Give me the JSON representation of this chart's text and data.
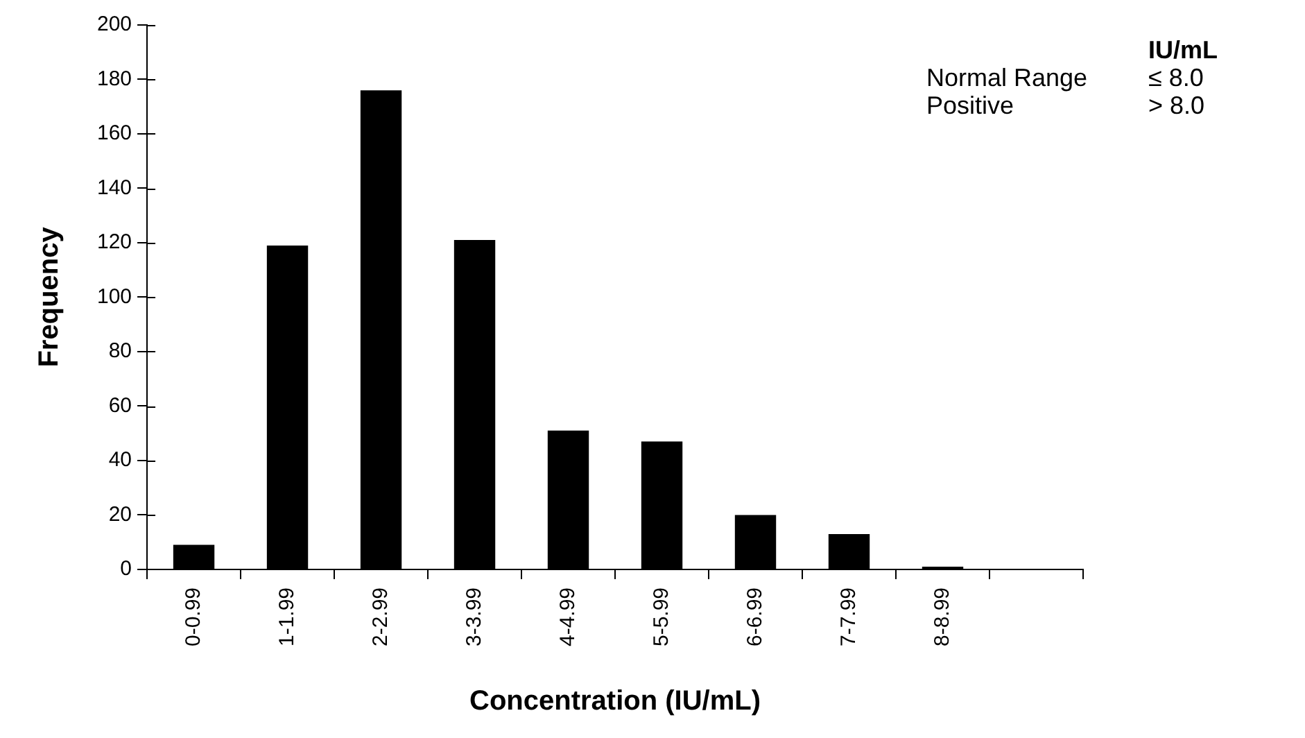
{
  "chart_data": {
    "type": "bar",
    "xlabel": "Concentration (IU/mL)",
    "ylabel": "Frequency",
    "categories": [
      "0-0.99",
      "1-1.99",
      "2-2.99",
      "3-3.99",
      "4-4.99",
      "5-5.99",
      "6-6.99",
      "7-7.99",
      "8-8.99",
      null
    ],
    "values": [
      9,
      119,
      176,
      121,
      51,
      47,
      20,
      13,
      1,
      null
    ],
    "color": "#000000",
    "ylim": [
      0,
      200
    ],
    "yticks": [
      0,
      20,
      40,
      60,
      80,
      100,
      120,
      140,
      160,
      180,
      200
    ],
    "grid": false,
    "legend": false,
    "annotations": [
      "IU/mL",
      "Normal Range",
      "≤ 8.0",
      "Positive",
      "> 8.0"
    ]
  }
}
